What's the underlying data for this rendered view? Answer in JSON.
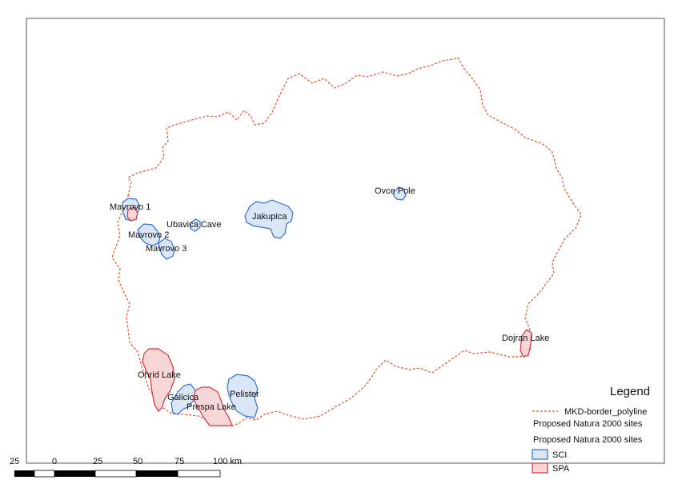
{
  "map": {
    "colors": {
      "border_line": "#e8502a",
      "sci_stroke": "#2f6fd6",
      "sci_fill": "#dbe6f7",
      "spa_stroke": "#d8333a",
      "spa_fill": "#f6d6d6"
    },
    "labels": {
      "mavrovo1": "Mavrovo 1",
      "mavrovo2": "Mavrovo 2",
      "mavrovo3": "Mavrovo 3",
      "ubavica": "Ubavica Cave",
      "jakupica": "Jakupica",
      "ovcepole": "Ovce Pole",
      "dojran": "Dojran Lake",
      "ohrid": "Ohrid Lake",
      "galicica": "Galicica",
      "prespa": "Prespa Lake",
      "pelister": "Pelister"
    }
  },
  "legend": {
    "title": "Legend",
    "border_label": "MKD-border_polyline",
    "group1": "Proposed Natura 2000 sites",
    "group2": "Proposed Natura 2000 sites",
    "sci": "SCI",
    "spa": "SPA"
  },
  "scalebar": {
    "ticks": [
      "25",
      "0",
      "25",
      "50",
      "75",
      "100 km"
    ]
  }
}
